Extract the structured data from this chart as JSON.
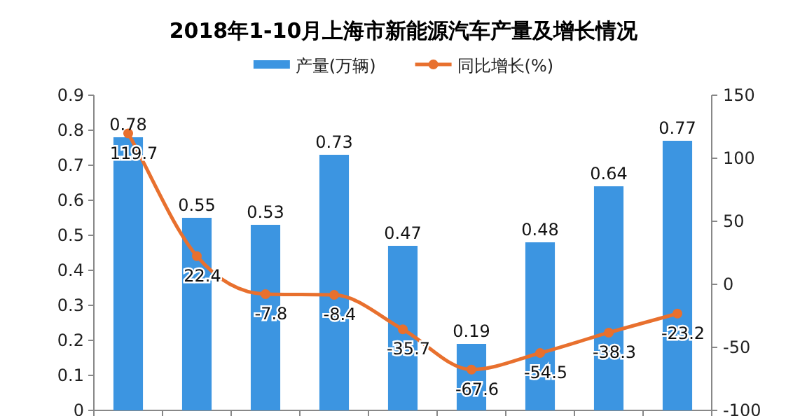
{
  "chart_data": {
    "type": "bar",
    "title": "2018年1-10月上海市新能源汽车产量及增长情况",
    "categories": [
      null,
      null,
      null,
      null,
      null,
      null,
      null,
      null,
      null
    ],
    "series": [
      {
        "name": "产量(万辆)",
        "color": "#3c95e1",
        "values": [
          0.78,
          0.55,
          0.53,
          0.73,
          0.47,
          0.19,
          0.48,
          0.64,
          0.77
        ]
      },
      {
        "name": "同比增长(%)",
        "type": "line",
        "axis": "y2",
        "color": "#e8702e",
        "marker": "circle",
        "values": [
          119.7,
          22.4,
          -7.8,
          -8.4,
          -35.7,
          -67.6,
          -54.5,
          -38.3,
          -23.2
        ]
      }
    ],
    "ylim": [
      0,
      0.9
    ],
    "yticks": [
      0,
      0.1,
      0.2,
      0.3,
      0.4,
      0.5,
      0.6,
      0.7,
      0.8,
      0.9
    ],
    "y2lim": [
      -100,
      150
    ],
    "y2ticks": [
      -100,
      -50,
      0,
      50,
      100,
      150
    ],
    "data_labels": true,
    "legend": "top",
    "grid": false
  }
}
